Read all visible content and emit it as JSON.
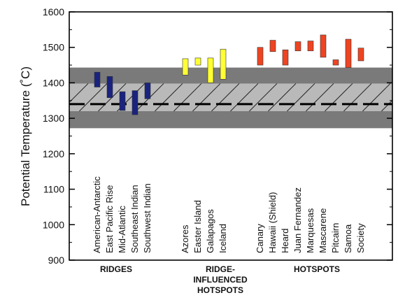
{
  "chart_data": {
    "type": "range-bar",
    "ylabel": "Potential Temperature (˚C)",
    "ylim": [
      900,
      1600
    ],
    "yticks": [
      900,
      1000,
      1100,
      1200,
      1300,
      1400,
      1500,
      1600
    ],
    "reference_line": 1340,
    "bands": {
      "outer": [
        1272,
        1443
      ],
      "inner": [
        1320,
        1398
      ]
    },
    "groups": [
      {
        "name": "RIDGES",
        "color": "#1a237e",
        "sites": [
          {
            "name": "American-Antarctic",
            "low": 1388,
            "high": 1430
          },
          {
            "name": "East Pacific Rise",
            "low": 1358,
            "high": 1418
          },
          {
            "name": "Mid-Atlantic",
            "low": 1322,
            "high": 1375
          },
          {
            "name": "Southeast Indian",
            "low": 1310,
            "high": 1378
          },
          {
            "name": "Southwest Indian",
            "low": 1355,
            "high": 1400
          }
        ]
      },
      {
        "name": "RIDGE- INFLUENCED HOTSPOTS",
        "label_lines": [
          "RIDGE-",
          "INFLUENCED",
          "HOTSPOTS"
        ],
        "color": "#ffff33",
        "sites": [
          {
            "name": "Azores",
            "low": 1422,
            "high": 1468
          },
          {
            "name": "Easter Island",
            "low": 1450,
            "high": 1470
          },
          {
            "name": "Galapagos",
            "low": 1400,
            "high": 1470
          },
          {
            "name": "Iceland",
            "low": 1410,
            "high": 1495
          }
        ]
      },
      {
        "name": "HOTSPOTS",
        "color": "#ee4422",
        "sites": [
          {
            "name": "Canary",
            "low": 1450,
            "high": 1500
          },
          {
            "name": "Hawaii (Shield)",
            "low": 1488,
            "high": 1520
          },
          {
            "name": "Heard",
            "low": 1450,
            "high": 1493
          },
          {
            "name": "Juan Fernandez",
            "low": 1490,
            "high": 1516
          },
          {
            "name": "Marquesas",
            "low": 1490,
            "high": 1518
          },
          {
            "name": "Mascarene",
            "low": 1472,
            "high": 1535
          },
          {
            "name": "Pitcairn",
            "low": 1450,
            "high": 1465
          },
          {
            "name": "Samoa",
            "low": 1443,
            "high": 1523
          },
          {
            "name": "Society",
            "low": 1462,
            "high": 1498
          }
        ]
      }
    ]
  }
}
